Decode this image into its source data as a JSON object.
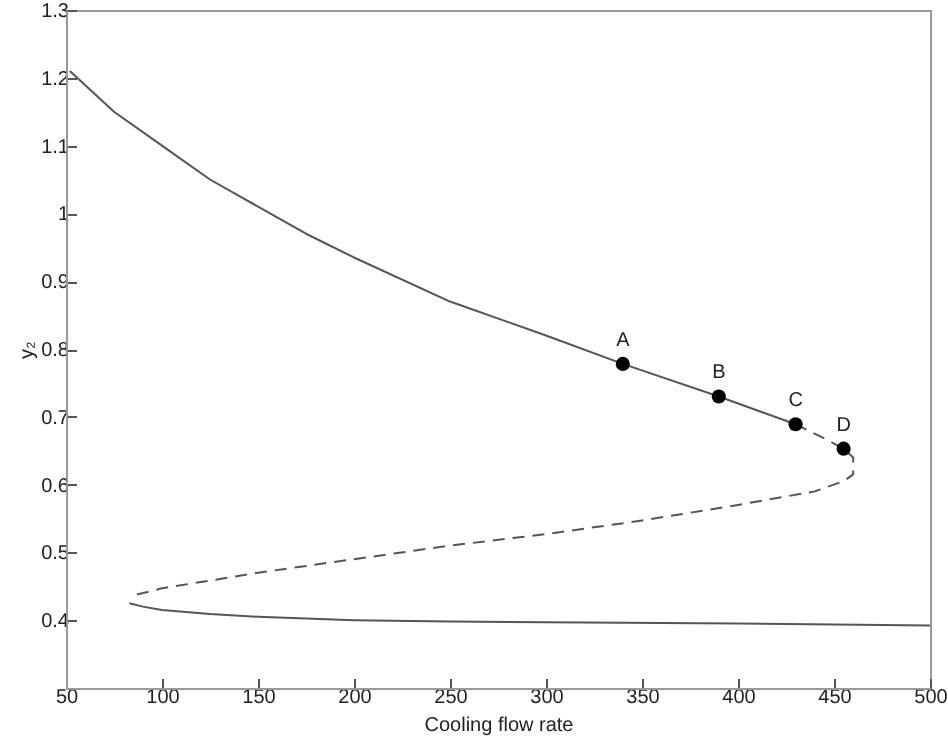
{
  "chart_data": {
    "type": "line",
    "xlabel": "Cooling flow rate",
    "ylabel": "y₂",
    "xlim": [
      50,
      500
    ],
    "xticks": [
      50,
      100,
      150,
      200,
      250,
      300,
      350,
      400,
      450,
      500
    ],
    "ylim": [
      0.3,
      1.3
    ],
    "yticks": [
      0.4,
      0.5,
      0.6,
      0.7,
      0.8,
      0.9,
      1,
      1.1,
      1.2,
      1.3
    ],
    "grid": false,
    "series": [
      {
        "color": "#555555",
        "line_style": "solid",
        "x": [
          52,
          75,
          100,
          125,
          150,
          175,
          200,
          250,
          300,
          340,
          390,
          430
        ],
        "values": [
          1.21,
          1.15,
          1.1,
          1.05,
          1.01,
          0.97,
          0.935,
          0.87,
          0.82,
          0.778,
          0.73,
          0.689
        ]
      },
      {
        "color": "#555555",
        "line_style": "dashed",
        "x": [
          430,
          445,
          455,
          460,
          460,
          455,
          440,
          400,
          350,
          300,
          250,
          200,
          150,
          100,
          83
        ],
        "values": [
          0.689,
          0.668,
          0.653,
          0.64,
          0.615,
          0.605,
          0.59,
          0.57,
          0.547,
          0.527,
          0.51,
          0.49,
          0.47,
          0.447,
          0.435
        ]
      },
      {
        "color": "#555555",
        "line_style": "solid",
        "x": [
          83,
          90,
          100,
          125,
          150,
          200,
          250,
          300,
          400,
          500
        ],
        "values": [
          0.425,
          0.42,
          0.415,
          0.409,
          0.405,
          0.4,
          0.398,
          0.397,
          0.395,
          0.392
        ]
      },
      {
        "type": "scatter",
        "color": "#000000",
        "marker": "circle",
        "x": [
          340,
          390,
          430,
          455
        ],
        "values": [
          0.778,
          0.73,
          0.689,
          0.653
        ]
      }
    ],
    "annotations": [
      {
        "text": "A",
        "x": 340,
        "y": 0.778
      },
      {
        "text": "B",
        "x": 390,
        "y": 0.73
      },
      {
        "text": "C",
        "x": 430,
        "y": 0.689
      },
      {
        "text": "D",
        "x": 455,
        "y": 0.653
      }
    ]
  }
}
